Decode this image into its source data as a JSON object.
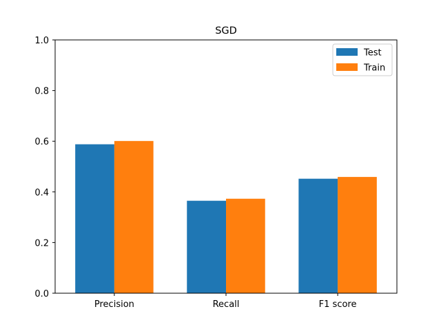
{
  "chart_data": {
    "type": "bar",
    "title": "SGD",
    "xlabel": "",
    "ylabel": "",
    "categories": [
      "Precision",
      "Recall",
      "F1 score"
    ],
    "series": [
      {
        "name": "Test",
        "values": [
          0.588,
          0.365,
          0.452
        ],
        "color": "#1f77b4"
      },
      {
        "name": "Train",
        "values": [
          0.601,
          0.373,
          0.459
        ],
        "color": "#ff7f0e"
      }
    ],
    "ylim": [
      0,
      1
    ],
    "yticks": [
      "0.0",
      "0.2",
      "0.4",
      "0.6",
      "0.8",
      "1.0"
    ],
    "grid": false,
    "legend_position": "top-right"
  }
}
